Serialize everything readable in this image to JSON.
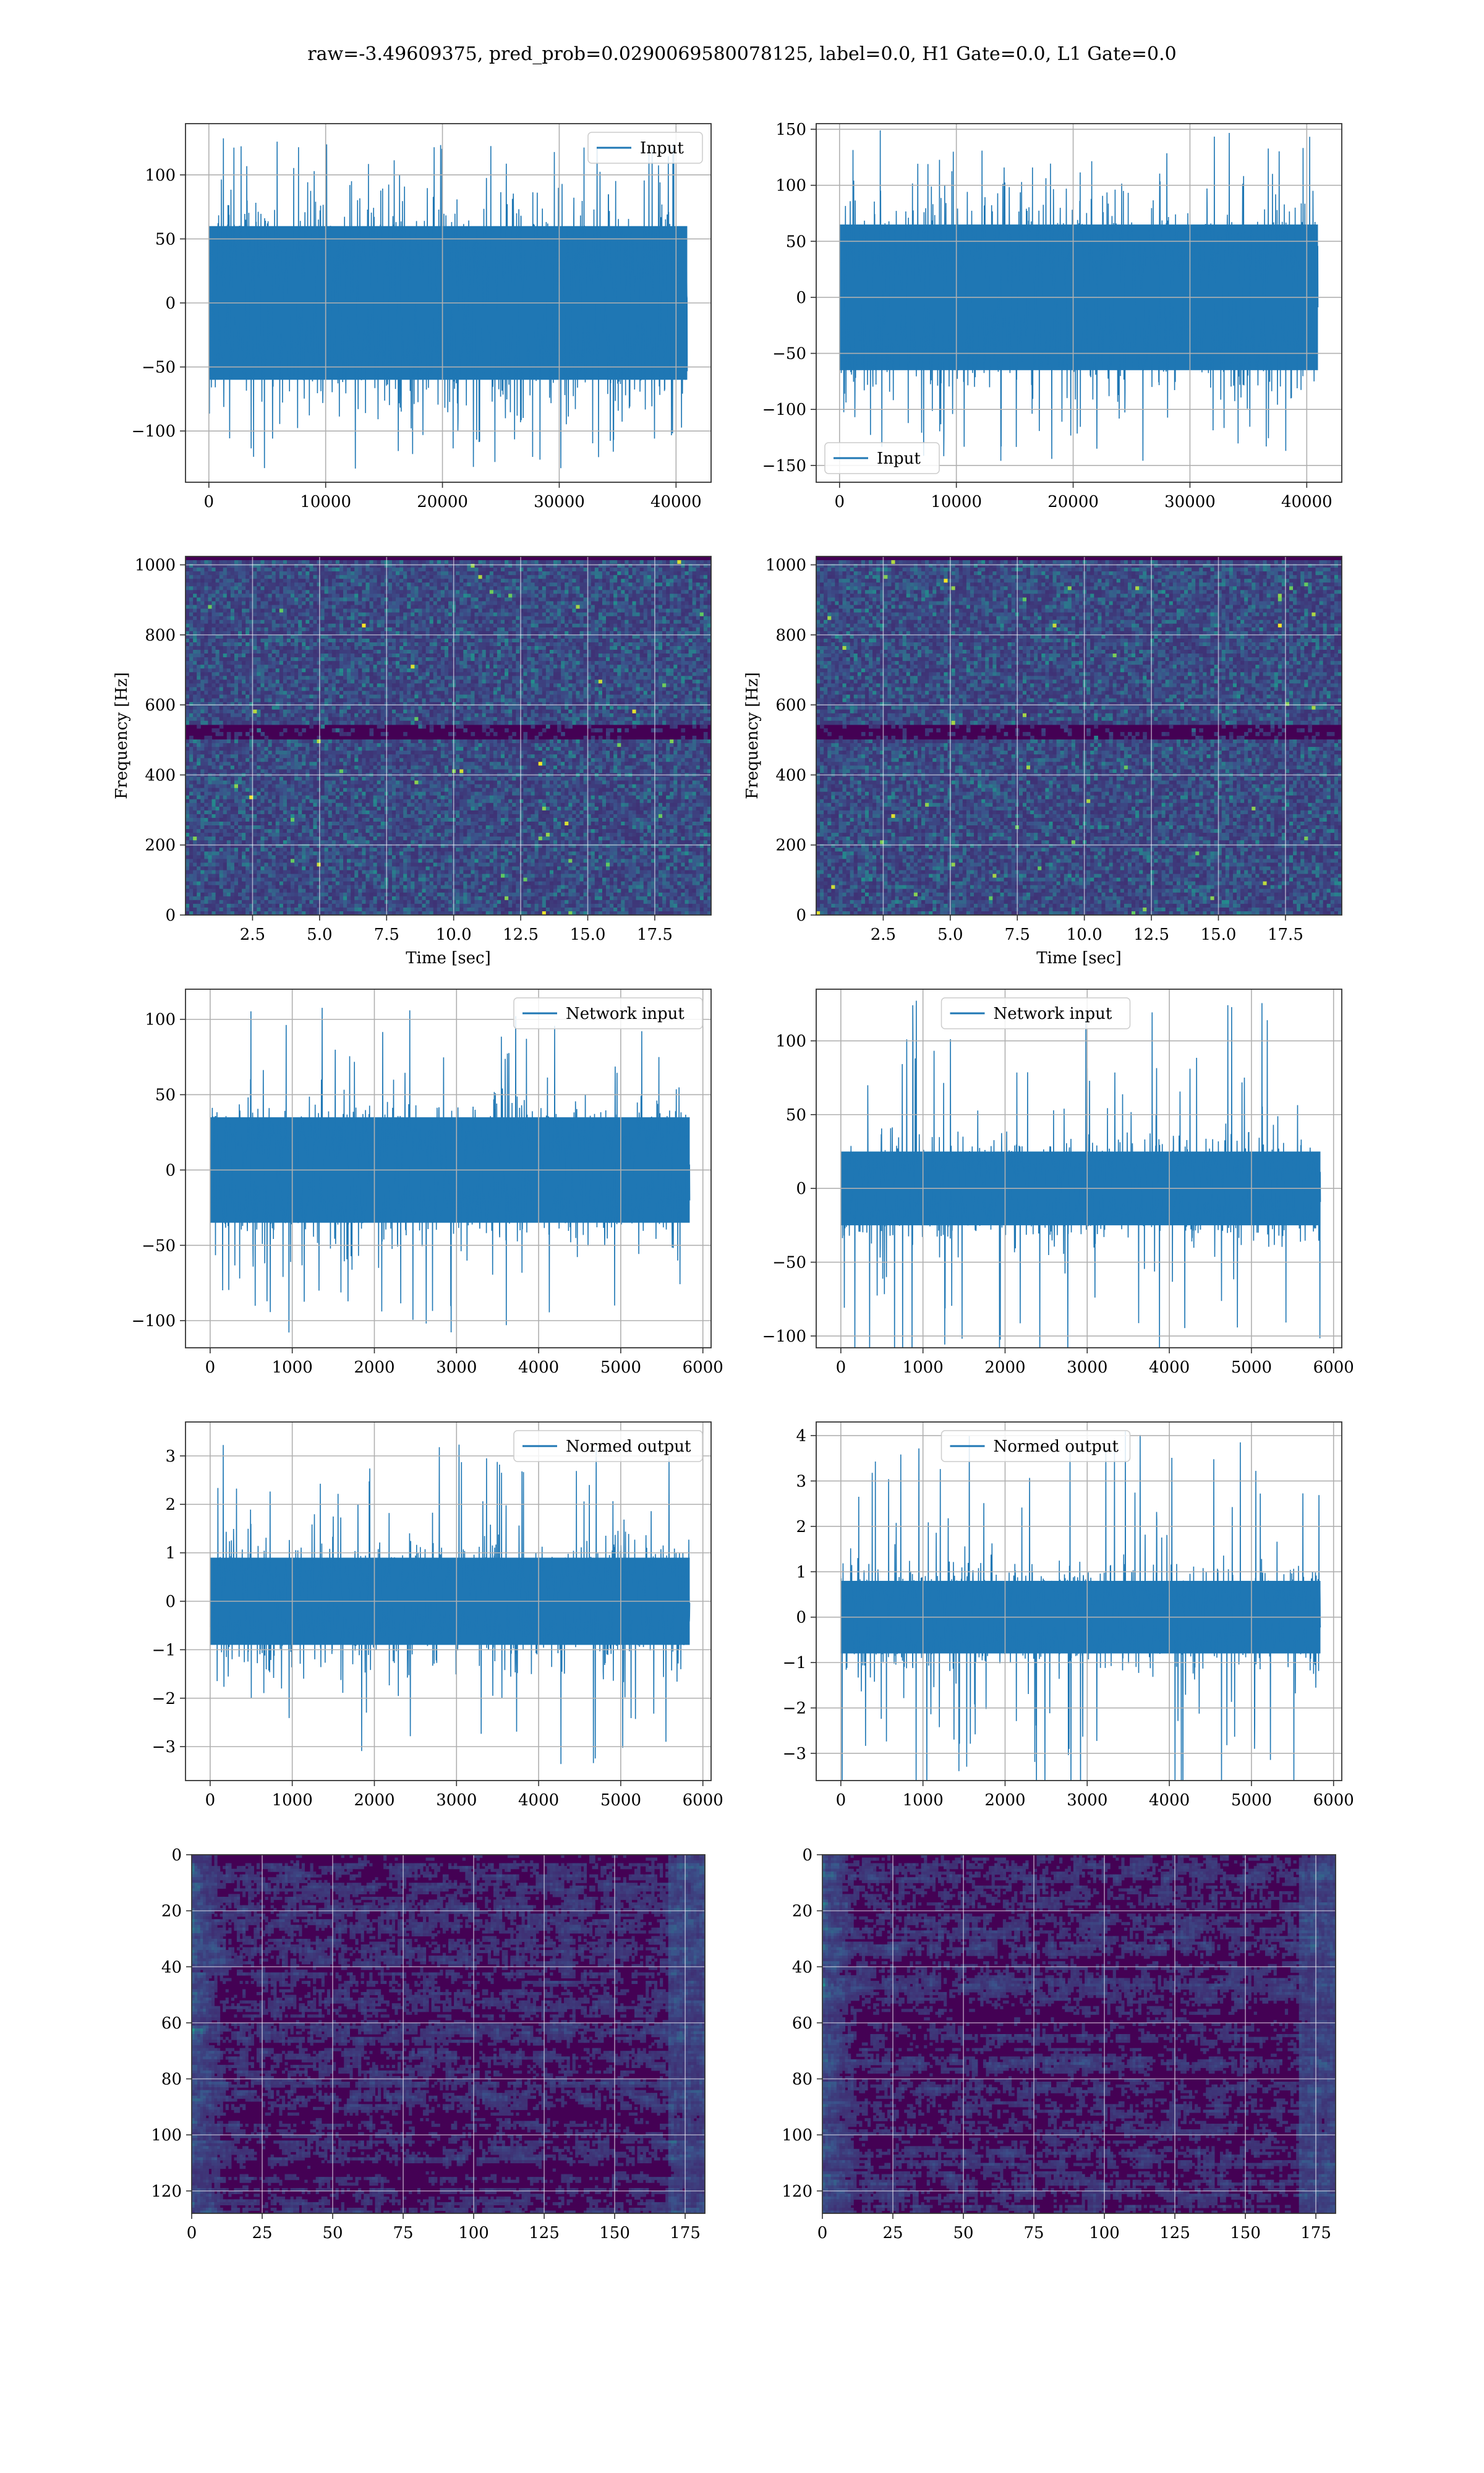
{
  "figure": {
    "title": "raw=-3.49609375, pred_prob=0.0290069580078125, label=0.0, H1 Gate=0.0, L1 Gate=0.0"
  },
  "colors": {
    "line": "#1f77b4",
    "grid": "#b0b0b0",
    "heat_low": "#440154",
    "heat_mid": "#21918c",
    "heat_high": "#fde725"
  },
  "chart_data": [
    {
      "id": "h1-input",
      "type": "line",
      "title": "",
      "xlabel": "",
      "ylabel": "",
      "xlim": [
        -2000,
        43000
      ],
      "ylim": [
        -140,
        140
      ],
      "xticks": [
        0,
        10000,
        20000,
        30000,
        40000
      ],
      "yticks": [
        -100,
        -50,
        0,
        50,
        100
      ],
      "grid": true,
      "legend": "top-right",
      "series": [
        {
          "name": "Input",
          "n_points": 40960,
          "x_range": [
            0,
            40960
          ],
          "core_amplitude": 60,
          "peak_amplitude": 130
        }
      ]
    },
    {
      "id": "l1-input",
      "type": "line",
      "title": "",
      "xlabel": "",
      "ylabel": "",
      "xlim": [
        -2000,
        43000
      ],
      "ylim": [
        -165,
        155
      ],
      "xticks": [
        0,
        10000,
        20000,
        30000,
        40000
      ],
      "yticks": [
        -150,
        -100,
        -50,
        0,
        50,
        100,
        150
      ],
      "grid": true,
      "legend": "bottom-left",
      "series": [
        {
          "name": "Input",
          "n_points": 40960,
          "x_range": [
            0,
            40960
          ],
          "core_amplitude": 65,
          "peak_amplitude": 150
        }
      ]
    },
    {
      "id": "h1-spectrogram",
      "type": "heatmap",
      "title": "",
      "xlabel": "Time [sec]",
      "ylabel": "Frequency [Hz]",
      "xlim": [
        0,
        19.6
      ],
      "ylim": [
        0,
        1024
      ],
      "xticks": [
        2.5,
        5.0,
        7.5,
        10.0,
        12.5,
        15.0,
        17.5
      ],
      "xtick_labels": [
        "2.5",
        "5.0",
        "7.5",
        "10.0",
        "12.5",
        "15.0",
        "17.5"
      ],
      "yticks": [
        0,
        200,
        400,
        600,
        800,
        1000
      ],
      "grid": true,
      "colormap": "viridis"
    },
    {
      "id": "l1-spectrogram",
      "type": "heatmap",
      "title": "",
      "xlabel": "Time [sec]",
      "ylabel": "Frequency [Hz]",
      "xlim": [
        0,
        19.6
      ],
      "ylim": [
        0,
        1024
      ],
      "xticks": [
        2.5,
        5.0,
        7.5,
        10.0,
        12.5,
        15.0,
        17.5
      ],
      "xtick_labels": [
        "2.5",
        "5.0",
        "7.5",
        "10.0",
        "12.5",
        "15.0",
        "17.5"
      ],
      "yticks": [
        0,
        200,
        400,
        600,
        800,
        1000
      ],
      "grid": true,
      "colormap": "viridis"
    },
    {
      "id": "h1-network-input",
      "type": "line",
      "title": "",
      "xlabel": "",
      "ylabel": "",
      "xlim": [
        -300,
        6100
      ],
      "ylim": [
        -118,
        120
      ],
      "xticks": [
        0,
        1000,
        2000,
        3000,
        4000,
        5000,
        6000
      ],
      "yticks": [
        -100,
        -50,
        0,
        50,
        100
      ],
      "grid": true,
      "legend": "top-right",
      "series": [
        {
          "name": "Network input",
          "n_points": 5840,
          "x_range": [
            0,
            5840
          ],
          "core_amplitude": 35,
          "peak_amplitude": 108
        }
      ]
    },
    {
      "id": "l1-network-input",
      "type": "line",
      "title": "",
      "xlabel": "",
      "ylabel": "",
      "xlim": [
        -300,
        6100
      ],
      "ylim": [
        -108,
        135
      ],
      "xticks": [
        0,
        1000,
        2000,
        3000,
        4000,
        5000,
        6000
      ],
      "yticks": [
        -100,
        -50,
        0,
        50,
        100
      ],
      "grid": true,
      "legend": "top-center",
      "series": [
        {
          "name": "Network input",
          "n_points": 5840,
          "x_range": [
            0,
            5840
          ],
          "core_amplitude": 25,
          "peak_amplitude": 130
        }
      ]
    },
    {
      "id": "h1-normed-output",
      "type": "line",
      "title": "",
      "xlabel": "",
      "ylabel": "",
      "xlim": [
        -300,
        6100
      ],
      "ylim": [
        -3.7,
        3.7
      ],
      "xticks": [
        0,
        1000,
        2000,
        3000,
        4000,
        5000,
        6000
      ],
      "yticks": [
        -3,
        -2,
        -1,
        0,
        1,
        2,
        3
      ],
      "grid": true,
      "legend": "top-right",
      "series": [
        {
          "name": "Normed output",
          "n_points": 5840,
          "x_range": [
            0,
            5840
          ],
          "core_amplitude": 0.9,
          "peak_amplitude": 3.4
        }
      ]
    },
    {
      "id": "l1-normed-output",
      "type": "line",
      "title": "",
      "xlabel": "",
      "ylabel": "",
      "xlim": [
        -300,
        6100
      ],
      "ylim": [
        -3.6,
        4.3
      ],
      "xticks": [
        0,
        1000,
        2000,
        3000,
        4000,
        5000,
        6000
      ],
      "yticks": [
        -3,
        -2,
        -1,
        0,
        1,
        2,
        3,
        4
      ],
      "grid": true,
      "legend": "top-center",
      "series": [
        {
          "name": "Normed output",
          "n_points": 5840,
          "x_range": [
            0,
            5840
          ],
          "core_amplitude": 0.8,
          "peak_amplitude": 4.1
        }
      ]
    },
    {
      "id": "h1-feature-map",
      "type": "heatmap",
      "title": "",
      "xlabel": "",
      "ylabel": "",
      "xlim": [
        0,
        182
      ],
      "ylim": [
        128,
        0
      ],
      "rows": 128,
      "cols": 182,
      "xticks": [
        0,
        25,
        50,
        75,
        100,
        125,
        150,
        175
      ],
      "yticks": [
        0,
        20,
        40,
        60,
        80,
        100,
        120
      ],
      "grid": true,
      "colormap": "viridis"
    },
    {
      "id": "l1-feature-map",
      "type": "heatmap",
      "title": "",
      "xlabel": "",
      "ylabel": "",
      "xlim": [
        0,
        182
      ],
      "ylim": [
        128,
        0
      ],
      "rows": 128,
      "cols": 182,
      "xticks": [
        0,
        25,
        50,
        75,
        100,
        125,
        150,
        175
      ],
      "yticks": [
        0,
        20,
        40,
        60,
        80,
        100,
        120
      ],
      "grid": true,
      "colormap": "viridis"
    }
  ]
}
